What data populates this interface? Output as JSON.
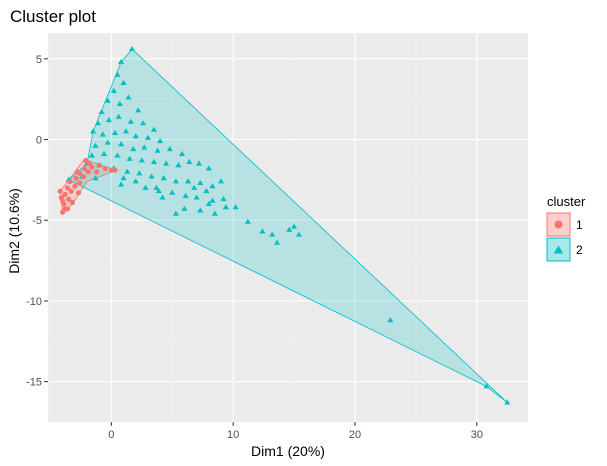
{
  "chart_data": {
    "type": "scatter",
    "title": "Cluster plot",
    "xlabel": "Dim1 (20%)",
    "ylabel": "Dim2 (10.6%)",
    "xlim": [
      -5.2,
      34.2
    ],
    "ylim": [
      -17.5,
      6.6
    ],
    "x_ticks": [
      0,
      10,
      20,
      30
    ],
    "y_ticks": [
      5,
      0,
      -5,
      -10,
      -15
    ],
    "grid": true,
    "legend_position": "right",
    "legend_title": "cluster",
    "series": [
      {
        "name": "1",
        "shape": "circle",
        "color": "#F8766D",
        "fill": "#F8766D",
        "hull": [
          [
            -4.0,
            -4.6
          ],
          [
            -4.2,
            -3.2
          ],
          [
            -3.2,
            -2.2
          ],
          [
            -2.2,
            -1.2
          ],
          [
            -1.6,
            -1.4
          ],
          [
            0.4,
            -1.9
          ],
          [
            -2.0,
            -2.6
          ],
          [
            -3.2,
            -4.0
          ]
        ],
        "points": [
          [
            -4.0,
            -4.5
          ],
          [
            -3.8,
            -4.3
          ],
          [
            -3.9,
            -4.0
          ],
          [
            -4.1,
            -3.6
          ],
          [
            -4.2,
            -3.2
          ],
          [
            -3.8,
            -3.4
          ],
          [
            -3.5,
            -3.7
          ],
          [
            -3.3,
            -3.2
          ],
          [
            -3.6,
            -3.0
          ],
          [
            -3.0,
            -2.9
          ],
          [
            -3.4,
            -2.6
          ],
          [
            -2.9,
            -2.4
          ],
          [
            -2.6,
            -2.7
          ],
          [
            -3.2,
            -3.9
          ],
          [
            -2.6,
            -2.1
          ],
          [
            -2.2,
            -1.8
          ],
          [
            -2.3,
            -2.3
          ],
          [
            -1.9,
            -2.0
          ],
          [
            -1.8,
            -1.5
          ],
          [
            -2.1,
            -1.3
          ],
          [
            -1.6,
            -1.7
          ],
          [
            -1.2,
            -2.0
          ],
          [
            -1.0,
            -1.6
          ],
          [
            -0.5,
            -1.8
          ],
          [
            0.0,
            -1.9
          ],
          [
            0.3,
            -1.9
          ],
          [
            -2.7,
            -3.3
          ],
          [
            -3.6,
            -4.3
          ],
          [
            -4.0,
            -3.8
          ],
          [
            -2.8,
            -2.0
          ]
        ]
      },
      {
        "name": "2",
        "shape": "triangle",
        "color": "#00BFC4",
        "fill": "#00BFC4",
        "hull": [
          [
            1.7,
            5.6
          ],
          [
            32.5,
            -16.3
          ],
          [
            30.8,
            -15.3
          ],
          [
            -3.5,
            -2.5
          ],
          [
            -2.0,
            -1.5
          ],
          [
            -1.5,
            0.5
          ],
          [
            0.8,
            4.8
          ]
        ],
        "points": [
          [
            1.7,
            5.6
          ],
          [
            0.8,
            4.8
          ],
          [
            0.5,
            4.0
          ],
          [
            1.0,
            3.5
          ],
          [
            0.2,
            3.0
          ],
          [
            -0.3,
            2.4
          ],
          [
            0.7,
            2.2
          ],
          [
            1.4,
            2.6
          ],
          [
            2.2,
            1.8
          ],
          [
            -0.8,
            1.7
          ],
          [
            -1.5,
            0.5
          ],
          [
            -1.1,
            1.0
          ],
          [
            -0.2,
            1.2
          ],
          [
            0.6,
            1.4
          ],
          [
            1.6,
            1.1
          ],
          [
            2.6,
            1.0
          ],
          [
            3.5,
            0.6
          ],
          [
            -0.7,
            0.3
          ],
          [
            0.3,
            0.4
          ],
          [
            1.2,
            0.5
          ],
          [
            2.0,
            0.2
          ],
          [
            3.0,
            0.1
          ],
          [
            4.0,
            -0.1
          ],
          [
            -1.3,
            -0.4
          ],
          [
            -0.3,
            -0.2
          ],
          [
            0.8,
            -0.3
          ],
          [
            1.8,
            -0.6
          ],
          [
            2.7,
            -0.5
          ],
          [
            3.8,
            -0.7
          ],
          [
            4.8,
            -0.6
          ],
          [
            5.8,
            -0.9
          ],
          [
            -1.6,
            -1.0
          ],
          [
            -0.6,
            -0.9
          ],
          [
            0.5,
            -1.0
          ],
          [
            1.5,
            -1.2
          ],
          [
            2.5,
            -1.3
          ],
          [
            3.5,
            -1.4
          ],
          [
            4.5,
            -1.5
          ],
          [
            5.5,
            -1.6
          ],
          [
            6.4,
            -1.4
          ],
          [
            7.2,
            -1.5
          ],
          [
            8.0,
            -1.8
          ],
          [
            -2.0,
            -1.5
          ],
          [
            -1.0,
            -1.6
          ],
          [
            0.2,
            -1.8
          ],
          [
            1.3,
            -2.0
          ],
          [
            2.3,
            -2.1
          ],
          [
            3.3,
            -2.3
          ],
          [
            4.3,
            -2.4
          ],
          [
            5.3,
            -2.6
          ],
          [
            6.3,
            -2.6
          ],
          [
            7.3,
            -2.7
          ],
          [
            8.3,
            -2.9
          ],
          [
            9.0,
            -2.6
          ],
          [
            -3.5,
            -2.5
          ],
          [
            -2.4,
            -2.3
          ],
          [
            -1.3,
            -2.4
          ],
          [
            0.8,
            -2.8
          ],
          [
            2.8,
            -3.0
          ],
          [
            3.9,
            -3.2
          ],
          [
            5.0,
            -3.3
          ],
          [
            6.1,
            -3.5
          ],
          [
            7.0,
            -3.6
          ],
          [
            8.3,
            -3.8
          ],
          [
            9.2,
            -3.7
          ],
          [
            4.2,
            -3.6
          ],
          [
            6.0,
            -4.3
          ],
          [
            7.3,
            -4.4
          ],
          [
            8.0,
            -4.0
          ],
          [
            5.3,
            -4.6
          ],
          [
            8.5,
            -4.6
          ],
          [
            9.4,
            -4.2
          ],
          [
            10.2,
            -4.2
          ],
          [
            11.2,
            -5.1
          ],
          [
            12.4,
            -5.7
          ],
          [
            13.6,
            -6.4
          ],
          [
            14.6,
            -5.6
          ],
          [
            15.0,
            -5.4
          ],
          [
            15.4,
            -5.9
          ],
          [
            13.2,
            -5.9
          ],
          [
            22.9,
            -11.2
          ],
          [
            30.8,
            -15.3
          ],
          [
            32.5,
            -16.3
          ],
          [
            3.7,
            -3.0
          ],
          [
            2.0,
            -2.6
          ],
          [
            1.0,
            -2.4
          ],
          [
            6.8,
            -3.0
          ],
          [
            7.8,
            -3.2
          ]
        ]
      }
    ]
  }
}
